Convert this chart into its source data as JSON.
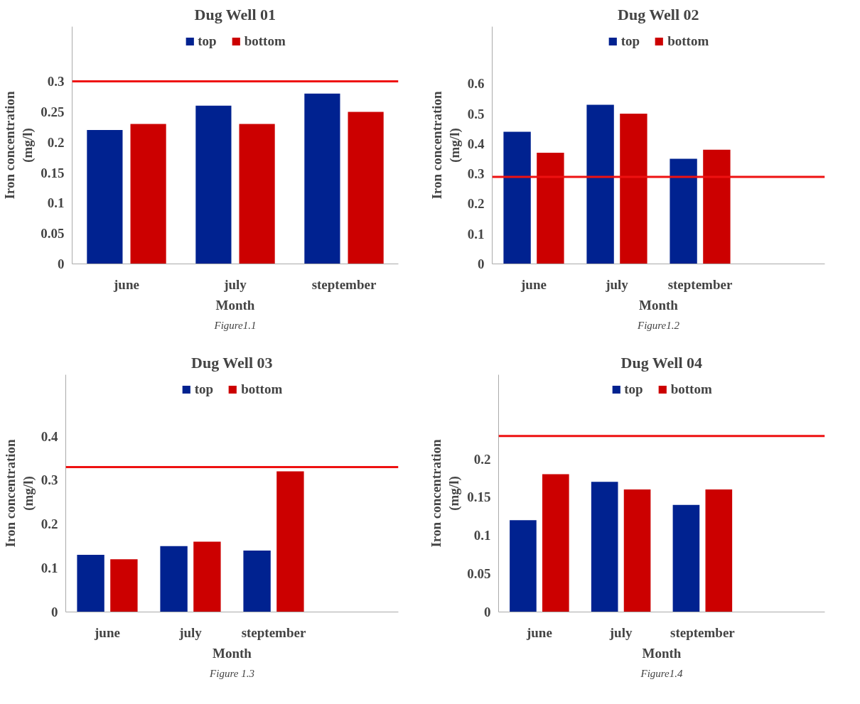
{
  "chart_data": [
    {
      "type": "bar",
      "title": "Dug Well 01",
      "xlabel": "Month",
      "ylabel": "Iron concentration\n(mg/l)",
      "categories": [
        "june",
        "july",
        "steptember"
      ],
      "series": [
        {
          "name": "top",
          "color": "#002290",
          "values": [
            0.22,
            0.26,
            0.28
          ]
        },
        {
          "name": "bottom",
          "color": "#cc0000",
          "values": [
            0.23,
            0.23,
            0.25
          ]
        }
      ],
      "ylim": [
        0,
        0.39
      ],
      "yticks": [
        0,
        0.05,
        0.1,
        0.15,
        0.2,
        0.25,
        0.3
      ],
      "grid": false,
      "legend": "top",
      "ref_lines": [
        {
          "axis": "y",
          "value": 0.3,
          "color": "#ee1111"
        }
      ],
      "annotations": [
        "Figure1.1"
      ]
    },
    {
      "type": "bar",
      "title": "Dug Well 02",
      "xlabel": "Month",
      "ylabel": "Iron concentration\n(mg/l)",
      "categories": [
        "june",
        "july",
        "steptember",
        null
      ],
      "series": [
        {
          "name": "top",
          "color": "#002290",
          "values": [
            0.44,
            0.53,
            0.35,
            null
          ]
        },
        {
          "name": "bottom",
          "color": "#cc0000",
          "values": [
            0.37,
            0.5,
            0.38,
            null
          ]
        }
      ],
      "ylim": [
        0,
        0.79
      ],
      "yticks": [
        0,
        0.1,
        0.2,
        0.3,
        0.4,
        0.5,
        0.6
      ],
      "grid": false,
      "legend": "top",
      "ref_lines": [
        {
          "axis": "y",
          "value": 0.29,
          "color": "#ee1111"
        }
      ],
      "annotations": [
        "Figure1.2"
      ]
    },
    {
      "type": "bar",
      "title": "Dug Well 03",
      "xlabel": "Month",
      "ylabel": "Iron concentration\n(mg/l)",
      "categories": [
        "june",
        "july",
        "steptember",
        null
      ],
      "series": [
        {
          "name": "top",
          "color": "#002290",
          "values": [
            0.13,
            0.15,
            0.14,
            null
          ]
        },
        {
          "name": "bottom",
          "color": "#cc0000",
          "values": [
            0.12,
            0.16,
            0.32,
            null
          ]
        }
      ],
      "ylim": [
        0,
        0.54
      ],
      "yticks": [
        0,
        0.1,
        0.2,
        0.3,
        0.4
      ],
      "grid": false,
      "legend": "top",
      "ref_lines": [
        {
          "axis": "y",
          "value": 0.33,
          "color": "#ee1111"
        }
      ],
      "annotations": [
        "Figure 1.3"
      ]
    },
    {
      "type": "bar",
      "title": "Dug Well 04",
      "xlabel": "Month",
      "ylabel": "Iron concentration\n(mg/l)",
      "categories": [
        "june",
        "july",
        "steptember",
        null
      ],
      "series": [
        {
          "name": "top",
          "color": "#002290",
          "values": [
            0.12,
            0.17,
            0.14,
            null
          ]
        },
        {
          "name": "bottom",
          "color": "#cc0000",
          "values": [
            0.18,
            0.16,
            0.16,
            null
          ]
        }
      ],
      "ylim": [
        0,
        0.31
      ],
      "yticks": [
        0,
        0.05,
        0.1,
        0.15,
        0.2
      ],
      "grid": false,
      "legend": "top",
      "ref_lines": [
        {
          "axis": "y",
          "value": 0.23,
          "color": "#ee1111"
        }
      ],
      "annotations": [
        "Figure1.4"
      ]
    }
  ]
}
